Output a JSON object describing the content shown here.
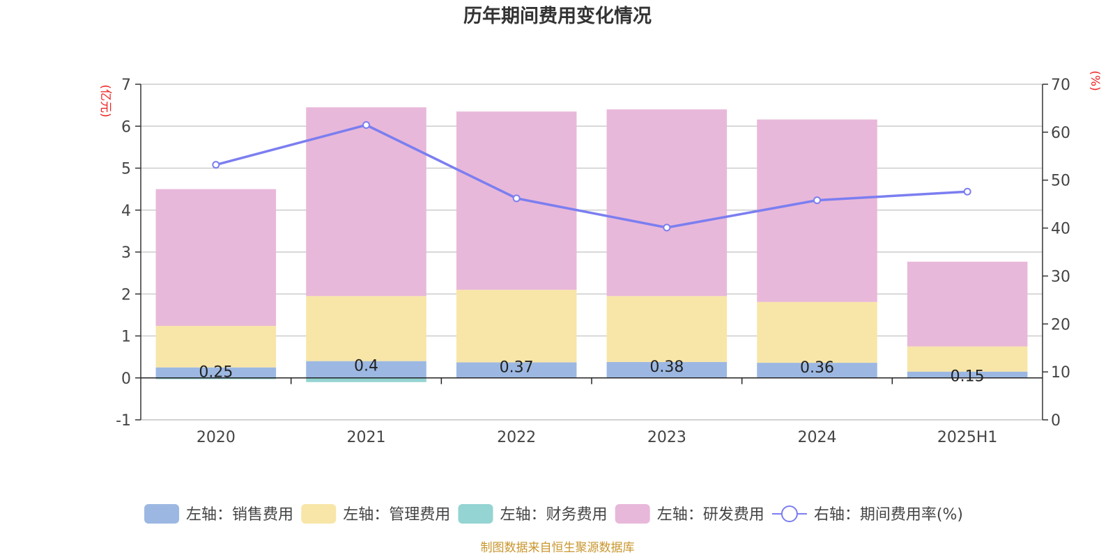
{
  "chart_data": {
    "type": "bar",
    "stacked": true,
    "title": "历年期间费用变化情况",
    "categories": [
      "2020",
      "2021",
      "2022",
      "2023",
      "2024",
      "2025H1"
    ],
    "left_axis": {
      "unit": "(亿元)",
      "min": -1,
      "max": 7,
      "step": 1,
      "ticks": [
        "-1",
        "0",
        "1",
        "2",
        "3",
        "4",
        "5",
        "6",
        "7"
      ]
    },
    "right_axis": {
      "unit": "(%)",
      "min": 0,
      "max": 70,
      "step": 10,
      "ticks": [
        "0",
        "10",
        "20",
        "30",
        "40",
        "50",
        "60",
        "70"
      ]
    },
    "grid": true,
    "legend_position": "bottom",
    "series": [
      {
        "name": "左轴：销售费用",
        "axis": "left",
        "color": "#9cb8e2",
        "values": [
          0.25,
          0.4,
          0.37,
          0.38,
          0.36,
          0.15
        ],
        "labels": [
          "0.25",
          "0.4",
          "0.37",
          "0.38",
          "0.36",
          "0.15"
        ]
      },
      {
        "name": "左轴：管理费用",
        "axis": "left",
        "color": "#f8e6a8",
        "values": [
          0.99,
          1.55,
          1.73,
          1.57,
          1.45,
          0.6
        ]
      },
      {
        "name": "左轴：财务费用",
        "axis": "left",
        "color": "#94d4d2",
        "values": [
          -0.03,
          -0.1,
          0.0,
          0.0,
          0.0,
          0.0
        ]
      },
      {
        "name": "左轴：研发费用",
        "axis": "left",
        "color": "#e8b8da",
        "values": [
          3.26,
          4.5,
          4.25,
          4.45,
          4.35,
          2.02
        ]
      },
      {
        "name": "右轴：期间费用率(%)",
        "axis": "right",
        "type": "line",
        "color": "#7b7ef0",
        "values": [
          53.2,
          61.5,
          46.2,
          40.1,
          45.8,
          47.6
        ]
      }
    ]
  },
  "footer": {
    "source": "制图数据来自恒生聚源数据库"
  }
}
